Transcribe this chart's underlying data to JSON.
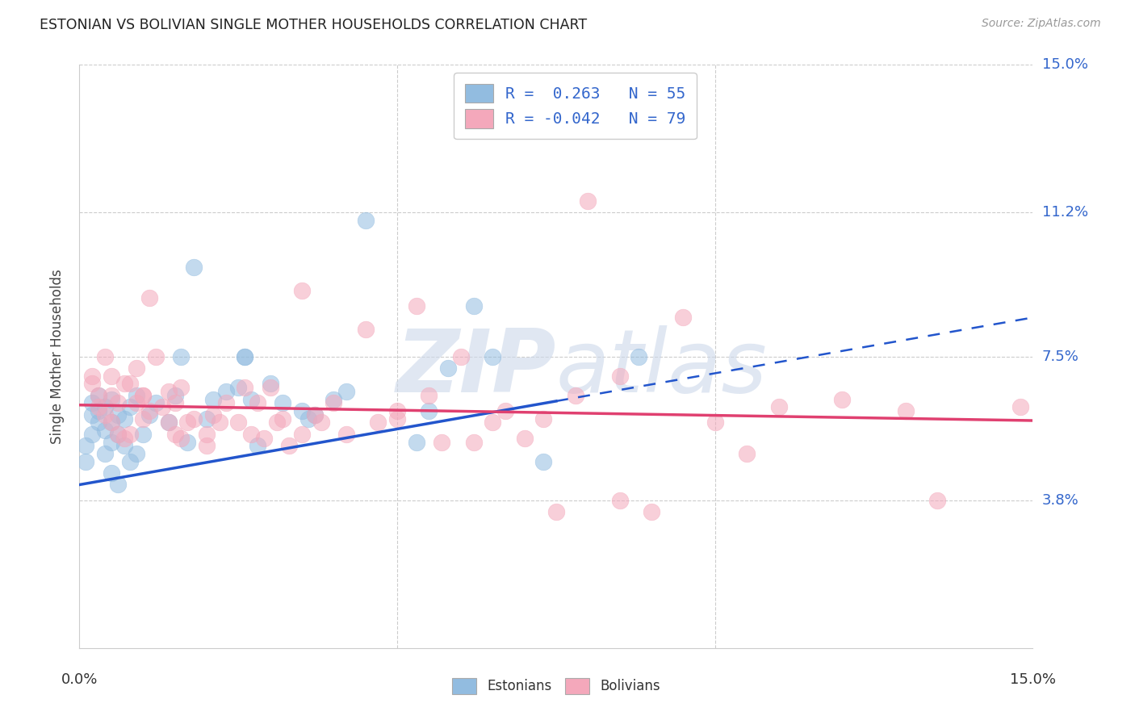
{
  "title": "ESTONIAN VS BOLIVIAN SINGLE MOTHER HOUSEHOLDS CORRELATION CHART",
  "source": "Source: ZipAtlas.com",
  "ylabel": "Single Mother Households",
  "ytick_labels": [
    "3.8%",
    "7.5%",
    "11.2%",
    "15.0%"
  ],
  "ytick_values": [
    3.8,
    7.5,
    11.2,
    15.0
  ],
  "xlim": [
    0.0,
    15.0
  ],
  "ylim": [
    0.0,
    15.0
  ],
  "legend_line1": "R =  0.263   N = 55",
  "legend_line2": "R = -0.042   N = 79",
  "estonian_color": "#92bce0",
  "bolivian_color": "#f4a8bb",
  "trend_estonian_color": "#2255cc",
  "trend_bolivian_color": "#e04070",
  "background_color": "#ffffff",
  "watermark_color": "#ccd8ea",
  "estonian_label": "Estonians",
  "bolivian_label": "Bolivians",
  "est_trend_x0": 0.0,
  "est_trend_y0": 4.2,
  "est_trend_x1": 15.0,
  "est_trend_y1": 8.5,
  "est_solid_end": 7.5,
  "bol_trend_x0": 0.0,
  "bol_trend_y0": 6.25,
  "bol_trend_x1": 15.0,
  "bol_trend_y1": 5.85,
  "estonian_points": [
    [
      0.1,
      4.8
    ],
    [
      0.1,
      5.2
    ],
    [
      0.2,
      5.5
    ],
    [
      0.2,
      6.0
    ],
    [
      0.2,
      6.3
    ],
    [
      0.3,
      5.8
    ],
    [
      0.3,
      6.1
    ],
    [
      0.3,
      6.5
    ],
    [
      0.4,
      5.0
    ],
    [
      0.4,
      5.6
    ],
    [
      0.4,
      6.2
    ],
    [
      0.5,
      4.5
    ],
    [
      0.5,
      5.3
    ],
    [
      0.5,
      5.8
    ],
    [
      0.5,
      6.4
    ],
    [
      0.6,
      4.2
    ],
    [
      0.6,
      5.5
    ],
    [
      0.6,
      6.0
    ],
    [
      0.7,
      5.2
    ],
    [
      0.7,
      5.9
    ],
    [
      0.8,
      4.8
    ],
    [
      0.8,
      6.2
    ],
    [
      0.9,
      5.0
    ],
    [
      0.9,
      6.5
    ],
    [
      1.0,
      5.5
    ],
    [
      1.1,
      6.0
    ],
    [
      1.2,
      6.3
    ],
    [
      1.4,
      5.8
    ],
    [
      1.5,
      6.5
    ],
    [
      1.6,
      7.5
    ],
    [
      1.7,
      5.3
    ],
    [
      1.8,
      9.8
    ],
    [
      2.0,
      5.9
    ],
    [
      2.1,
      6.4
    ],
    [
      2.3,
      6.6
    ],
    [
      2.5,
      6.7
    ],
    [
      2.6,
      7.5
    ],
    [
      2.6,
      7.5
    ],
    [
      2.7,
      6.4
    ],
    [
      2.8,
      5.2
    ],
    [
      3.0,
      6.8
    ],
    [
      3.2,
      6.3
    ],
    [
      3.5,
      6.1
    ],
    [
      3.6,
      5.9
    ],
    [
      3.7,
      6.0
    ],
    [
      4.0,
      6.4
    ],
    [
      4.2,
      6.6
    ],
    [
      4.5,
      11.0
    ],
    [
      5.3,
      5.3
    ],
    [
      5.5,
      6.1
    ],
    [
      5.8,
      7.2
    ],
    [
      6.2,
      8.8
    ],
    [
      6.5,
      7.5
    ],
    [
      7.3,
      4.8
    ],
    [
      8.8,
      7.5
    ]
  ],
  "bolivian_points": [
    [
      0.2,
      7.0
    ],
    [
      0.2,
      6.8
    ],
    [
      0.3,
      6.5
    ],
    [
      0.3,
      6.2
    ],
    [
      0.4,
      7.5
    ],
    [
      0.4,
      6.0
    ],
    [
      0.5,
      5.8
    ],
    [
      0.5,
      6.5
    ],
    [
      0.5,
      7.0
    ],
    [
      0.6,
      5.5
    ],
    [
      0.6,
      6.3
    ],
    [
      0.7,
      6.8
    ],
    [
      0.7,
      5.4
    ],
    [
      0.8,
      6.8
    ],
    [
      0.8,
      5.5
    ],
    [
      0.9,
      6.3
    ],
    [
      0.9,
      7.2
    ],
    [
      1.0,
      6.5
    ],
    [
      1.0,
      5.9
    ],
    [
      1.0,
      6.5
    ],
    [
      1.1,
      6.1
    ],
    [
      1.1,
      9.0
    ],
    [
      1.2,
      7.5
    ],
    [
      1.3,
      6.2
    ],
    [
      1.4,
      5.8
    ],
    [
      1.4,
      6.6
    ],
    [
      1.5,
      5.5
    ],
    [
      1.5,
      6.3
    ],
    [
      1.6,
      5.4
    ],
    [
      1.6,
      6.7
    ],
    [
      1.7,
      5.8
    ],
    [
      1.8,
      5.9
    ],
    [
      2.0,
      5.2
    ],
    [
      2.0,
      5.5
    ],
    [
      2.1,
      6.0
    ],
    [
      2.2,
      5.8
    ],
    [
      2.3,
      6.3
    ],
    [
      2.5,
      5.8
    ],
    [
      2.6,
      6.7
    ],
    [
      2.7,
      5.5
    ],
    [
      2.8,
      6.3
    ],
    [
      2.9,
      5.4
    ],
    [
      3.0,
      6.7
    ],
    [
      3.1,
      5.8
    ],
    [
      3.2,
      5.9
    ],
    [
      3.3,
      5.2
    ],
    [
      3.5,
      5.5
    ],
    [
      3.5,
      9.2
    ],
    [
      3.7,
      6.0
    ],
    [
      3.8,
      5.8
    ],
    [
      4.0,
      6.3
    ],
    [
      4.2,
      5.5
    ],
    [
      4.5,
      8.2
    ],
    [
      4.7,
      5.8
    ],
    [
      5.0,
      6.1
    ],
    [
      5.0,
      5.9
    ],
    [
      5.3,
      8.8
    ],
    [
      5.5,
      6.5
    ],
    [
      5.7,
      5.3
    ],
    [
      6.0,
      7.5
    ],
    [
      6.2,
      5.3
    ],
    [
      6.5,
      5.8
    ],
    [
      6.7,
      6.1
    ],
    [
      7.0,
      5.4
    ],
    [
      7.3,
      5.9
    ],
    [
      7.5,
      3.5
    ],
    [
      7.8,
      6.5
    ],
    [
      8.0,
      11.5
    ],
    [
      8.5,
      7.0
    ],
    [
      8.5,
      3.8
    ],
    [
      9.0,
      3.5
    ],
    [
      9.5,
      8.5
    ],
    [
      10.0,
      5.8
    ],
    [
      10.5,
      5.0
    ],
    [
      11.0,
      6.2
    ],
    [
      12.0,
      6.4
    ],
    [
      13.0,
      6.1
    ],
    [
      13.5,
      3.8
    ],
    [
      14.8,
      6.2
    ]
  ]
}
